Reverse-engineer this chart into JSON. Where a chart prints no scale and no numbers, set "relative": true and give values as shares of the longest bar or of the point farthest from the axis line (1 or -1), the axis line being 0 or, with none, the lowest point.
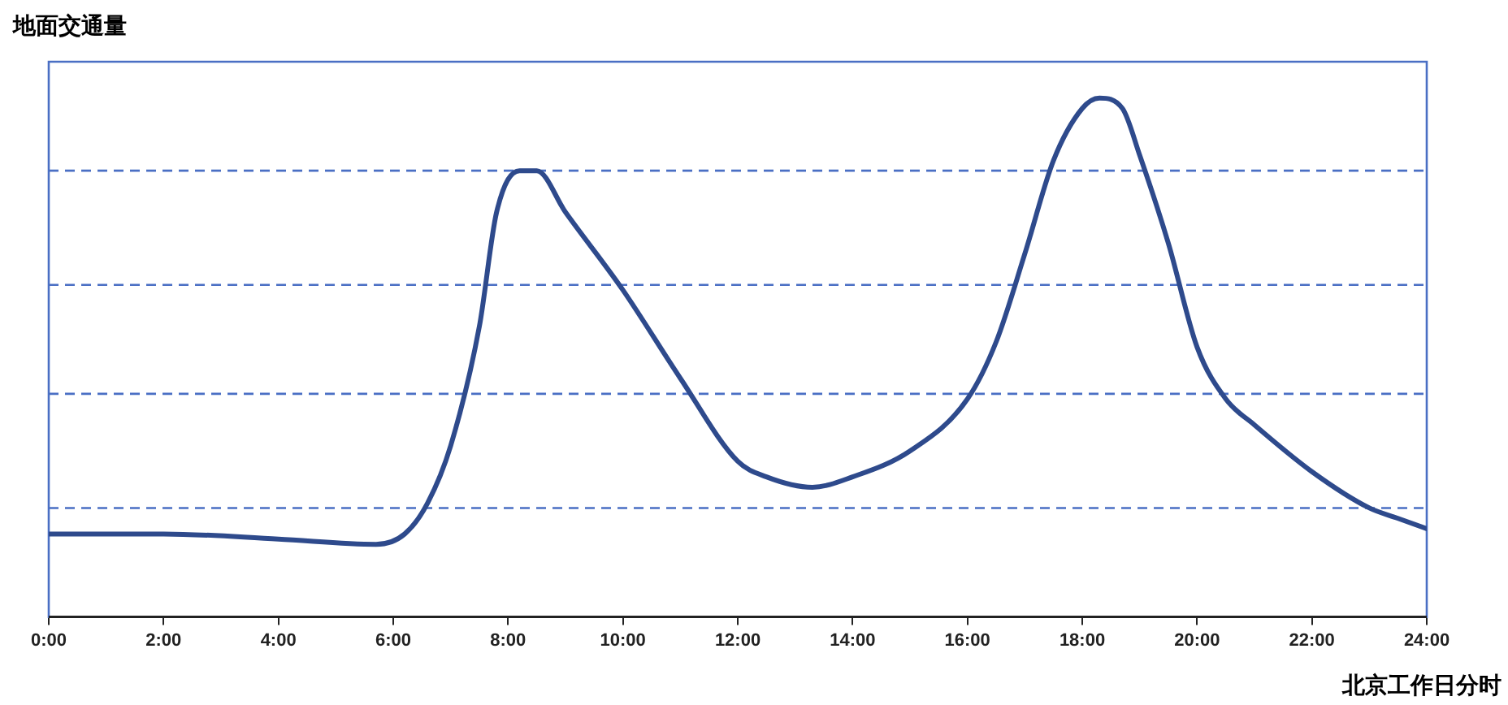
{
  "chart_data": {
    "type": "line",
    "relative": true,
    "xlabel": "北京工作日分时",
    "ylabel": "地面交通量",
    "xlim": [
      0,
      24
    ],
    "xticks": [
      {
        "value": 0,
        "label": "0:00"
      },
      {
        "value": 2,
        "label": "2:00"
      },
      {
        "value": 4,
        "label": "4:00"
      },
      {
        "value": 6,
        "label": "6:00"
      },
      {
        "value": 8,
        "label": "8:00"
      },
      {
        "value": 10,
        "label": "10:00"
      },
      {
        "value": 12,
        "label": "12:00"
      },
      {
        "value": 14,
        "label": "14:00"
      },
      {
        "value": 16,
        "label": "16:00"
      },
      {
        "value": 18,
        "label": "18:00"
      },
      {
        "value": 20,
        "label": "20:00"
      },
      {
        "value": 22,
        "label": "22:00"
      },
      {
        "value": 24,
        "label": "24:00"
      }
    ],
    "x": [
      0,
      2,
      4,
      5.7,
      6.2,
      6.6,
      7,
      7.5,
      7.8,
      8.2,
      8.5,
      9,
      10,
      11,
      12,
      12.5,
      13.3,
      14,
      15,
      16,
      16.5,
      17,
      17.5,
      18,
      18.3,
      18.7,
      19,
      19.5,
      20,
      20.5,
      21,
      22,
      23,
      23.5,
      24
    ],
    "series": [
      {
        "color": "#2e4a8c",
        "values": [
          0.16,
          0.16,
          0.15,
          0.14,
          0.16,
          0.22,
          0.33,
          0.56,
          0.78,
          0.86,
          0.86,
          0.78,
          0.63,
          0.46,
          0.3,
          0.27,
          0.25,
          0.27,
          0.32,
          0.42,
          0.53,
          0.7,
          0.88,
          0.98,
          1,
          0.98,
          0.89,
          0.72,
          0.52,
          0.42,
          0.37,
          0.28,
          0.21,
          0.19,
          0.17
        ]
      }
    ],
    "ref_lines": [
      {
        "axis": "y",
        "value": 0.21,
        "color": "#4a6fc4",
        "line_style": "dashed"
      },
      {
        "axis": "y",
        "value": 0.43,
        "color": "#4a6fc4",
        "line_style": "dashed"
      },
      {
        "axis": "y",
        "value": 0.64,
        "color": "#4a6fc4",
        "line_style": "dashed"
      },
      {
        "axis": "y",
        "value": 0.86,
        "color": "#4a6fc4",
        "line_style": "dashed"
      }
    ],
    "grid": false,
    "legend": false,
    "marker": "none",
    "line_style": "solid"
  }
}
